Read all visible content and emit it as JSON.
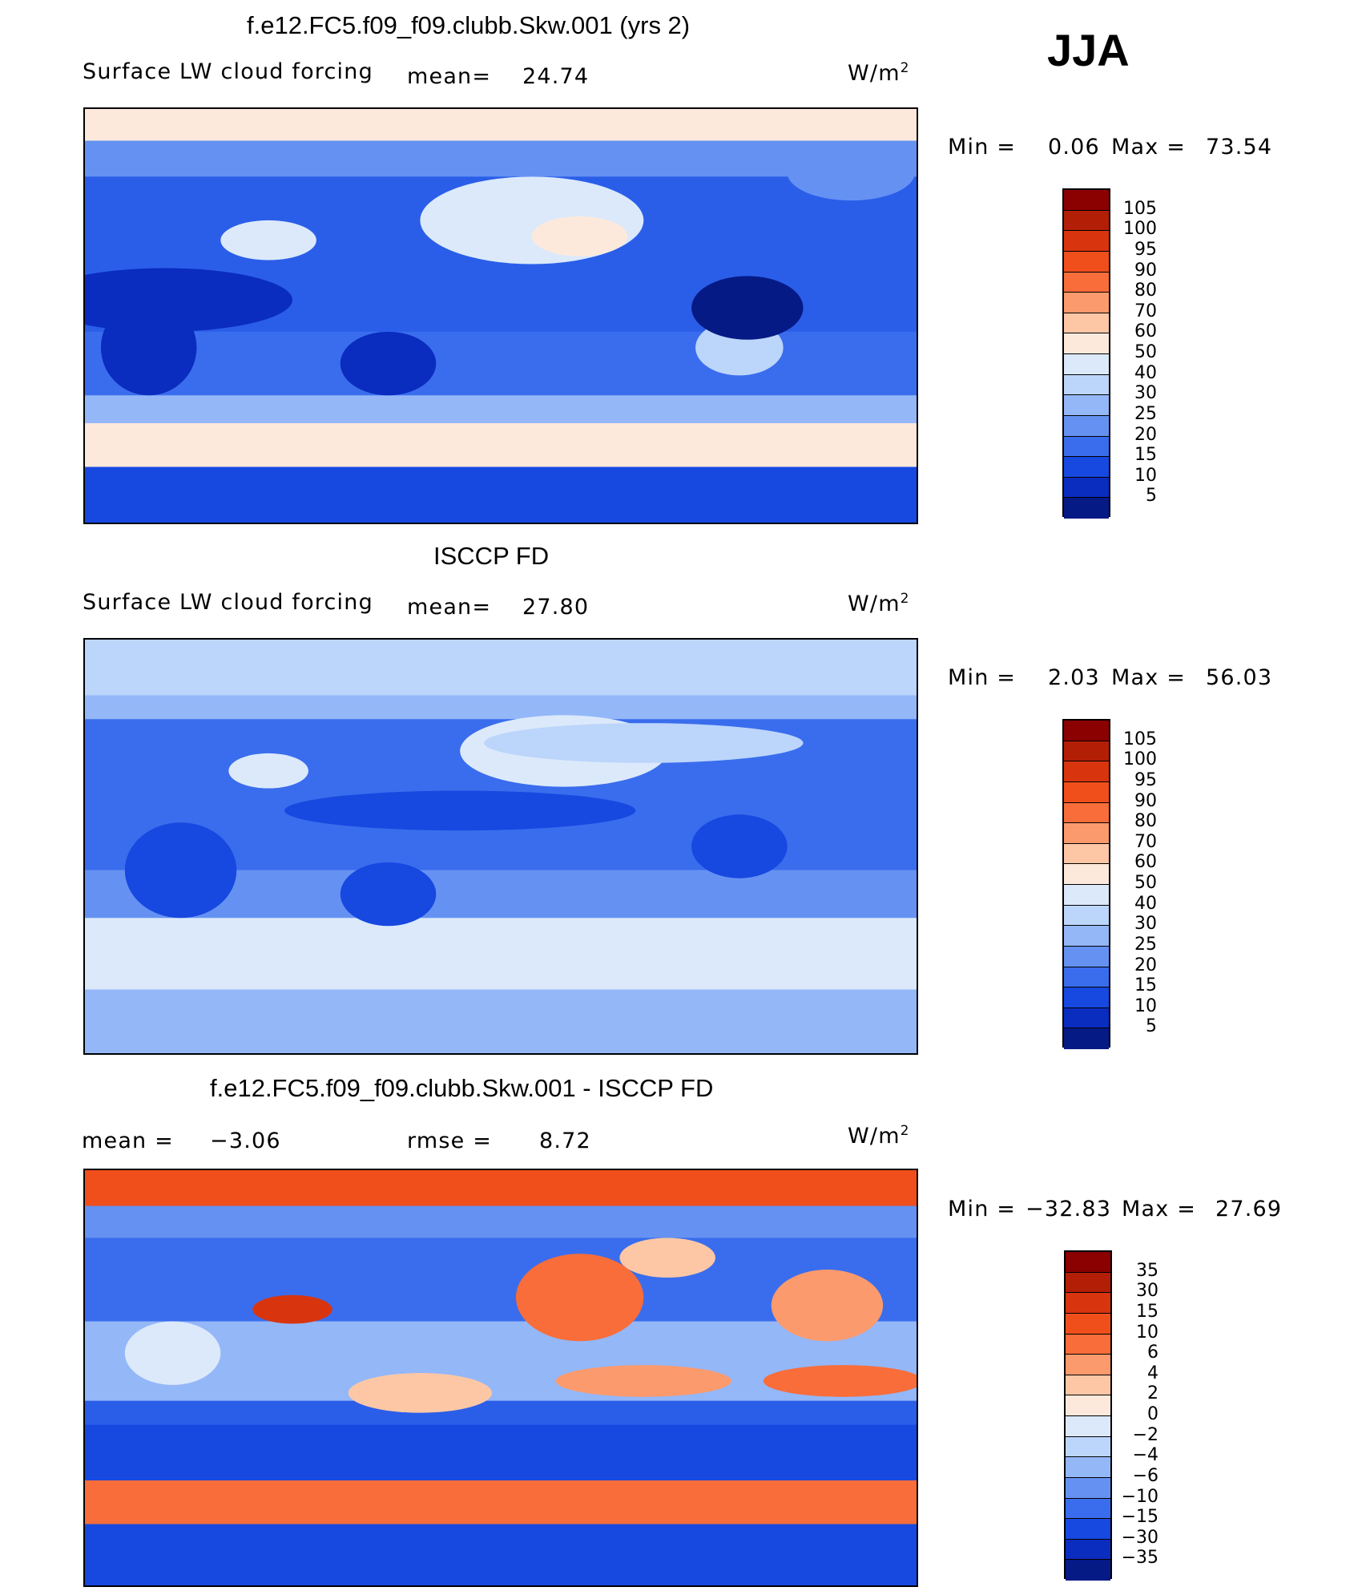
{
  "season": "JJA",
  "units_main": "W/m",
  "units_sup": "2",
  "panels": [
    {
      "title": "f.e12.FC5.f09_f09.clubb.Skw.001 (yrs 2)",
      "variable": "Surface LW cloud forcing",
      "mean_label": "mean=",
      "mean_value": "24.74",
      "min_label": "Min =",
      "min_value": "0.06",
      "max_label": "Max =",
      "max_value": "73.54"
    },
    {
      "title": "ISCCP FD",
      "variable": "Surface LW cloud forcing",
      "mean_label": "mean=",
      "mean_value": "27.80",
      "min_label": "Min =",
      "min_value": "2.03",
      "max_label": "Max =",
      "max_value": "56.03"
    },
    {
      "title": "f.e12.FC5.f09_f09.clubb.Skw.001 - ISCCP FD",
      "mean_label": "mean =",
      "mean_value": "−3.06",
      "rmse_label": "rmse =",
      "rmse_value": "8.72",
      "min_label": "Min =",
      "min_value": "−32.83",
      "max_label": "Max =",
      "max_value": "27.69"
    }
  ],
  "chart_data": [
    {
      "type": "heatmap",
      "title": "f.e12.FC5.f09_f09.clubb.Skw.001 (yrs 2)",
      "subtitle": "Surface LW cloud forcing",
      "units": "W/m2",
      "mean": 24.74,
      "min": 0.06,
      "max": 73.54,
      "colorbar_levels": [
        "105",
        "100",
        "95",
        "90",
        "80",
        "70",
        "60",
        "50",
        "40",
        "30",
        "25",
        "20",
        "15",
        "10",
        "5"
      ],
      "colorbar_colors": [
        "#8b0000",
        "#b31e06",
        "#d8350f",
        "#f04f1c",
        "#f86d3a",
        "#fb9a6d",
        "#fdc7a6",
        "#fde9dc",
        "#dbe9fb",
        "#bcd5fb",
        "#94b7f8",
        "#6592f2",
        "#3a6ded",
        "#1748e0",
        "#0a2cbf",
        "#061a85"
      ]
    },
    {
      "type": "heatmap",
      "title": "ISCCP FD",
      "subtitle": "Surface LW cloud forcing",
      "units": "W/m2",
      "mean": 27.8,
      "min": 2.03,
      "max": 56.03,
      "colorbar_levels": [
        "105",
        "100",
        "95",
        "90",
        "80",
        "70",
        "60",
        "50",
        "40",
        "30",
        "25",
        "20",
        "15",
        "10",
        "5"
      ],
      "colorbar_colors": [
        "#8b0000",
        "#b31e06",
        "#d8350f",
        "#f04f1c",
        "#f86d3a",
        "#fb9a6d",
        "#fdc7a6",
        "#fde9dc",
        "#dbe9fb",
        "#bcd5fb",
        "#94b7f8",
        "#6592f2",
        "#3a6ded",
        "#1748e0",
        "#0a2cbf",
        "#061a85"
      ]
    },
    {
      "type": "heatmap",
      "title": "f.e12.FC5.f09_f09.clubb.Skw.001 - ISCCP FD",
      "units": "W/m2",
      "mean": -3.06,
      "rmse": 8.72,
      "min": -32.83,
      "max": 27.69,
      "colorbar_levels": [
        "35",
        "30",
        "15",
        "10",
        "6",
        "4",
        "2",
        "0",
        "−2",
        "−4",
        "−6",
        "−10",
        "−15",
        "−30",
        "−35"
      ],
      "colorbar_colors": [
        "#8b0000",
        "#b31e06",
        "#d8350f",
        "#f04f1c",
        "#f86d3a",
        "#fb9a6d",
        "#fdc7a6",
        "#fde9dc",
        "#dbe9fb",
        "#bcd5fb",
        "#94b7f8",
        "#6592f2",
        "#3a6ded",
        "#1748e0",
        "#0a2cbf",
        "#061a85"
      ]
    }
  ]
}
